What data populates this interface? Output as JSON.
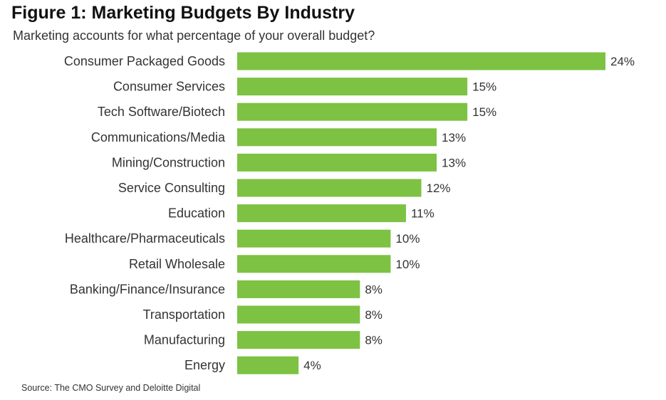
{
  "title": "Figure 1: Marketing Budgets By Industry",
  "subtitle": "Marketing accounts for what percentage of your overall budget?",
  "source": "Source: The CMO Survey and Deloitte Digital",
  "chart_data": {
    "type": "bar",
    "orientation": "horizontal",
    "title": "Figure 1: Marketing Budgets By Industry",
    "subtitle": "Marketing accounts for what percentage of your overall budget?",
    "xlabel": "",
    "ylabel": "",
    "xlim": [
      0,
      24
    ],
    "grid": false,
    "legend": "none",
    "bar_color": "#7dc243",
    "categories": [
      "Consumer Packaged Goods",
      "Consumer Services",
      "Tech Software/Biotech",
      "Communications/Media",
      "Mining/Construction",
      "Service Consulting",
      "Education",
      "Healthcare/Pharmaceuticals",
      "Retail Wholesale",
      "Banking/Finance/Insurance",
      "Transportation",
      "Manufacturing",
      "Energy"
    ],
    "values": [
      24,
      15,
      15,
      13,
      13,
      12,
      11,
      10,
      10,
      8,
      8,
      8,
      4
    ],
    "value_labels": [
      "24%",
      "15%",
      "15%",
      "13%",
      "13%",
      "12%",
      "11%",
      "10%",
      "10%",
      "8%",
      "8%",
      "8%",
      "4%"
    ]
  }
}
